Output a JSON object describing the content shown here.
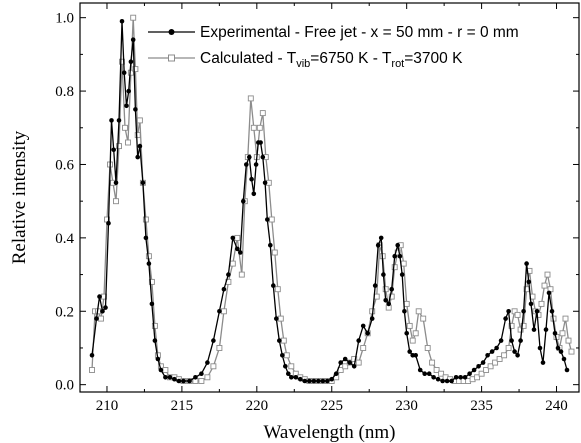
{
  "chart_data": {
    "type": "line",
    "xlabel": "Wavelength (nm)",
    "ylabel": "Relative intensity",
    "xlim": [
      208.2,
      241.5
    ],
    "ylim": [
      -0.02,
      1.04
    ],
    "x_ticks": [
      210,
      215,
      220,
      225,
      230,
      235,
      240
    ],
    "x_tick_labels": [
      "210",
      "215",
      "220",
      "225",
      "230",
      "235",
      "240"
    ],
    "y_ticks": [
      0.0,
      0.2,
      0.4,
      0.6,
      0.8,
      1.0
    ],
    "y_tick_labels": [
      "0.0",
      "0.2",
      "0.4",
      "0.6",
      "0.8",
      "1.0"
    ],
    "grid": false,
    "legend_position": "top-right",
    "legend": {
      "exp": {
        "text": "Experimental - Free jet - x = 50 mm - r = 0 mm"
      },
      "calc": {
        "prefix": "Calculated - T",
        "sub1": "vib",
        "middle": "=6750 K - T",
        "sub2": "rot",
        "suffix": "=3700 K"
      }
    },
    "series": [
      {
        "name": "Experimental - Free jet - x = 50 mm - r = 0 mm",
        "color": "#000000",
        "marker": "filled-circle",
        "x": [
          209.0,
          209.3,
          209.5,
          209.7,
          209.9,
          210.1,
          210.3,
          210.45,
          210.6,
          210.8,
          211.0,
          211.15,
          211.3,
          211.45,
          211.6,
          211.75,
          211.9,
          212.05,
          212.2,
          212.4,
          212.6,
          212.8,
          213.0,
          213.2,
          213.4,
          213.6,
          213.9,
          214.2,
          214.5,
          214.8,
          215.1,
          215.5,
          215.9,
          216.3,
          216.7,
          217.1,
          217.5,
          217.8,
          218.1,
          218.4,
          218.7,
          218.9,
          219.1,
          219.3,
          219.5,
          219.65,
          219.8,
          219.95,
          220.1,
          220.25,
          220.4,
          220.55,
          220.7,
          220.9,
          221.1,
          221.3,
          221.5,
          221.7,
          221.9,
          222.1,
          222.3,
          222.6,
          222.9,
          223.2,
          223.5,
          223.8,
          224.1,
          224.4,
          224.7,
          225.0,
          225.3,
          225.6,
          225.9,
          226.2,
          226.5,
          226.8,
          227.1,
          227.4,
          227.7,
          227.9,
          228.1,
          228.3,
          228.45,
          228.6,
          228.8,
          229.0,
          229.2,
          229.4,
          229.55,
          229.7,
          229.85,
          230.0,
          230.2,
          230.4,
          230.6,
          230.9,
          231.2,
          231.5,
          231.8,
          232.1,
          232.4,
          232.7,
          233.0,
          233.3,
          233.6,
          233.9,
          234.2,
          234.5,
          234.8,
          235.1,
          235.4,
          235.7,
          236.0,
          236.3,
          236.6,
          236.8,
          237.0,
          237.2,
          237.4,
          237.6,
          237.8,
          238.0,
          238.15,
          238.3,
          238.5,
          238.7,
          238.9,
          239.1,
          239.3,
          239.5,
          239.7,
          239.9,
          240.1,
          240.3,
          240.5,
          240.7
        ],
        "y": [
          0.08,
          0.18,
          0.24,
          0.2,
          0.21,
          0.44,
          0.72,
          0.64,
          0.55,
          0.72,
          0.99,
          0.85,
          0.76,
          0.8,
          0.88,
          0.94,
          0.75,
          0.62,
          0.65,
          0.55,
          0.4,
          0.33,
          0.22,
          0.12,
          0.07,
          0.04,
          0.02,
          0.02,
          0.015,
          0.01,
          0.01,
          0.01,
          0.02,
          0.03,
          0.06,
          0.12,
          0.2,
          0.26,
          0.3,
          0.4,
          0.37,
          0.36,
          0.5,
          0.6,
          0.62,
          0.56,
          0.52,
          0.6,
          0.66,
          0.66,
          0.62,
          0.55,
          0.45,
          0.38,
          0.27,
          0.18,
          0.12,
          0.08,
          0.05,
          0.03,
          0.02,
          0.02,
          0.015,
          0.01,
          0.01,
          0.01,
          0.01,
          0.01,
          0.01,
          0.015,
          0.03,
          0.06,
          0.07,
          0.06,
          0.05,
          0.12,
          0.16,
          0.14,
          0.18,
          0.27,
          0.38,
          0.4,
          0.3,
          0.23,
          0.22,
          0.26,
          0.35,
          0.38,
          0.35,
          0.3,
          0.2,
          0.14,
          0.09,
          0.08,
          0.08,
          0.04,
          0.03,
          0.03,
          0.02,
          0.015,
          0.01,
          0.01,
          0.01,
          0.02,
          0.02,
          0.02,
          0.03,
          0.04,
          0.05,
          0.06,
          0.08,
          0.09,
          0.1,
          0.12,
          0.18,
          0.2,
          0.12,
          0.09,
          0.08,
          0.12,
          0.2,
          0.33,
          0.28,
          0.22,
          0.15,
          0.2,
          0.1,
          0.06,
          0.15,
          0.25,
          0.2,
          0.14,
          0.1,
          0.09,
          0.07,
          0.04
        ]
      },
      {
        "name": "Calculated - Tvib=6750 K - Trot=3700 K",
        "color": "#8c8c8c",
        "marker": "open-square",
        "x": [
          209.0,
          209.2,
          209.4,
          209.6,
          209.8,
          210.0,
          210.2,
          210.4,
          210.6,
          210.8,
          211.0,
          211.2,
          211.4,
          211.6,
          211.75,
          211.9,
          212.05,
          212.2,
          212.4,
          212.6,
          212.8,
          213.0,
          213.2,
          213.4,
          213.6,
          213.9,
          214.2,
          214.5,
          214.8,
          215.1,
          215.5,
          215.9,
          216.3,
          216.7,
          217.1,
          217.5,
          217.8,
          218.1,
          218.4,
          218.7,
          219.0,
          219.2,
          219.4,
          219.6,
          219.8,
          220.0,
          220.2,
          220.4,
          220.6,
          220.8,
          221.0,
          221.2,
          221.4,
          221.6,
          221.8,
          222.0,
          222.3,
          222.6,
          222.9,
          223.2,
          223.5,
          223.8,
          224.1,
          224.4,
          224.7,
          225.0,
          225.3,
          225.6,
          225.9,
          226.2,
          226.5,
          226.8,
          227.1,
          227.4,
          227.7,
          228.0,
          228.2,
          228.4,
          228.6,
          228.8,
          229.0,
          229.2,
          229.4,
          229.6,
          229.8,
          230.0,
          230.2,
          230.4,
          230.6,
          230.8,
          231.1,
          231.4,
          231.7,
          232.0,
          232.3,
          232.6,
          232.9,
          233.2,
          233.5,
          233.8,
          234.1,
          234.4,
          234.7,
          235.0,
          235.3,
          235.6,
          235.9,
          236.2,
          236.5,
          236.8,
          237.0,
          237.2,
          237.4,
          237.6,
          237.8,
          238.0,
          238.2,
          238.4,
          238.6,
          238.8,
          239.0,
          239.2,
          239.4,
          239.6,
          239.8,
          240.0,
          240.2,
          240.4,
          240.6,
          240.8,
          241.0
        ],
        "y": [
          0.04,
          0.2,
          0.2,
          0.18,
          0.24,
          0.45,
          0.6,
          0.55,
          0.5,
          0.65,
          0.88,
          0.7,
          0.66,
          0.85,
          1.0,
          0.86,
          0.68,
          0.72,
          0.55,
          0.45,
          0.35,
          0.28,
          0.16,
          0.08,
          0.05,
          0.04,
          0.02,
          0.02,
          0.015,
          0.01,
          0.01,
          0.01,
          0.01,
          0.02,
          0.05,
          0.1,
          0.2,
          0.28,
          0.33,
          0.4,
          0.3,
          0.5,
          0.62,
          0.78,
          0.7,
          0.62,
          0.7,
          0.74,
          0.62,
          0.55,
          0.45,
          0.36,
          0.26,
          0.18,
          0.12,
          0.08,
          0.05,
          0.03,
          0.02,
          0.015,
          0.01,
          0.01,
          0.01,
          0.01,
          0.01,
          0.01,
          0.02,
          0.04,
          0.05,
          0.06,
          0.07,
          0.06,
          0.1,
          0.14,
          0.2,
          0.24,
          0.38,
          0.35,
          0.26,
          0.21,
          0.24,
          0.32,
          0.36,
          0.38,
          0.33,
          0.22,
          0.16,
          0.12,
          0.14,
          0.2,
          0.18,
          0.1,
          0.06,
          0.04,
          0.03,
          0.02,
          0.015,
          0.01,
          0.01,
          0.01,
          0.01,
          0.015,
          0.02,
          0.03,
          0.04,
          0.05,
          0.06,
          0.07,
          0.08,
          0.1,
          0.16,
          0.2,
          0.19,
          0.15,
          0.16,
          0.26,
          0.31,
          0.24,
          0.2,
          0.19,
          0.22,
          0.27,
          0.3,
          0.26,
          0.18,
          0.13,
          0.1,
          0.14,
          0.18,
          0.12,
          0.09
        ]
      }
    ]
  }
}
